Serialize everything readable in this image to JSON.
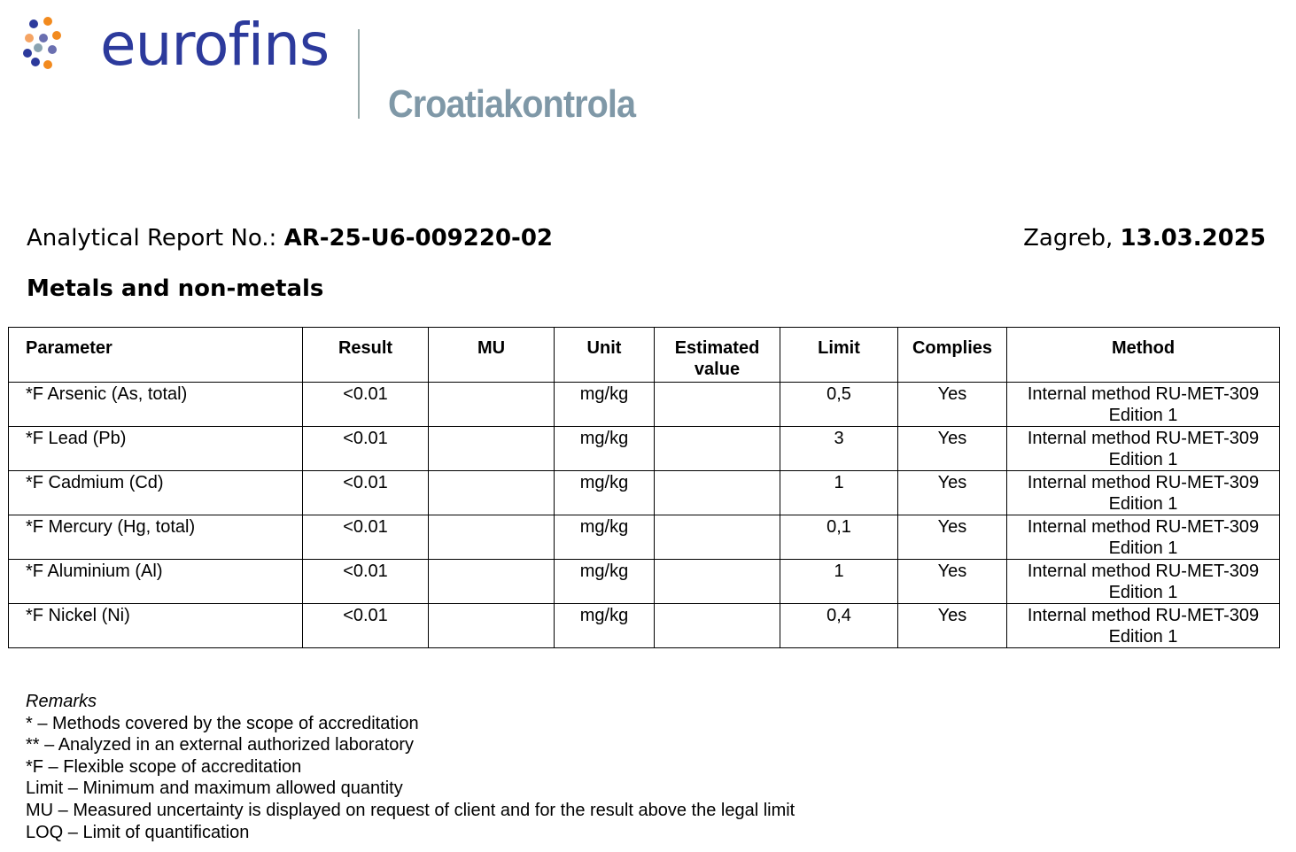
{
  "header": {
    "brand": "eurofins",
    "subsidiary": "Croatiakontrola",
    "report_label": "Analytical Report No.:",
    "report_number": "AR-25-U6-009220-02",
    "city": "Zagreb,",
    "date": "13.03.2025"
  },
  "section_title": "Metals and non-metals",
  "table": {
    "columns": [
      "Parameter",
      "Result",
      "MU",
      "Unit",
      "Estimated value",
      "Limit",
      "Complies",
      "Method"
    ],
    "rows": [
      {
        "parameter": "*F Arsenic (As, total)",
        "result": "<0.01",
        "mu": "",
        "unit": "mg/kg",
        "estimated": "",
        "limit": "0,5",
        "complies": "Yes",
        "method": "Internal method RU-MET-309 Edition 1"
      },
      {
        "parameter": "*F Lead (Pb)",
        "result": "<0.01",
        "mu": "",
        "unit": "mg/kg",
        "estimated": "",
        "limit": "3",
        "complies": "Yes",
        "method": "Internal method RU-MET-309 Edition 1"
      },
      {
        "parameter": "*F Cadmium (Cd)",
        "result": "<0.01",
        "mu": "",
        "unit": "mg/kg",
        "estimated": "",
        "limit": "1",
        "complies": "Yes",
        "method": "Internal method RU-MET-309 Edition 1"
      },
      {
        "parameter": "*F Mercury (Hg, total)",
        "result": "<0.01",
        "mu": "",
        "unit": "mg/kg",
        "estimated": "",
        "limit": "0,1",
        "complies": "Yes",
        "method": "Internal method RU-MET-309 Edition 1"
      },
      {
        "parameter": "*F Aluminium (Al)",
        "result": "<0.01",
        "mu": "",
        "unit": "mg/kg",
        "estimated": "",
        "limit": "1",
        "complies": "Yes",
        "method": "Internal method RU-MET-309 Edition 1"
      },
      {
        "parameter": "*F Nickel (Ni)",
        "result": "<0.01",
        "mu": "",
        "unit": "mg/kg",
        "estimated": "",
        "limit": "0,4",
        "complies": "Yes",
        "method": "Internal method RU-MET-309 Edition 1"
      }
    ]
  },
  "remarks": {
    "title": "Remarks",
    "lines": [
      "* – Methods covered by the scope of accreditation",
      "** – Analyzed in an external authorized laboratory",
      "*F – Flexible scope of accreditation",
      "Limit – Minimum and maximum allowed quantity",
      "MU – Measured uncertainty is displayed on request of client and for the result above the legal limit",
      "LOQ – Limit of quantification"
    ]
  },
  "colors": {
    "brand_blue": "#2c3a9c",
    "brand_orange": "#f28a1e",
    "subsidiary_gray": "#7f98a7"
  }
}
